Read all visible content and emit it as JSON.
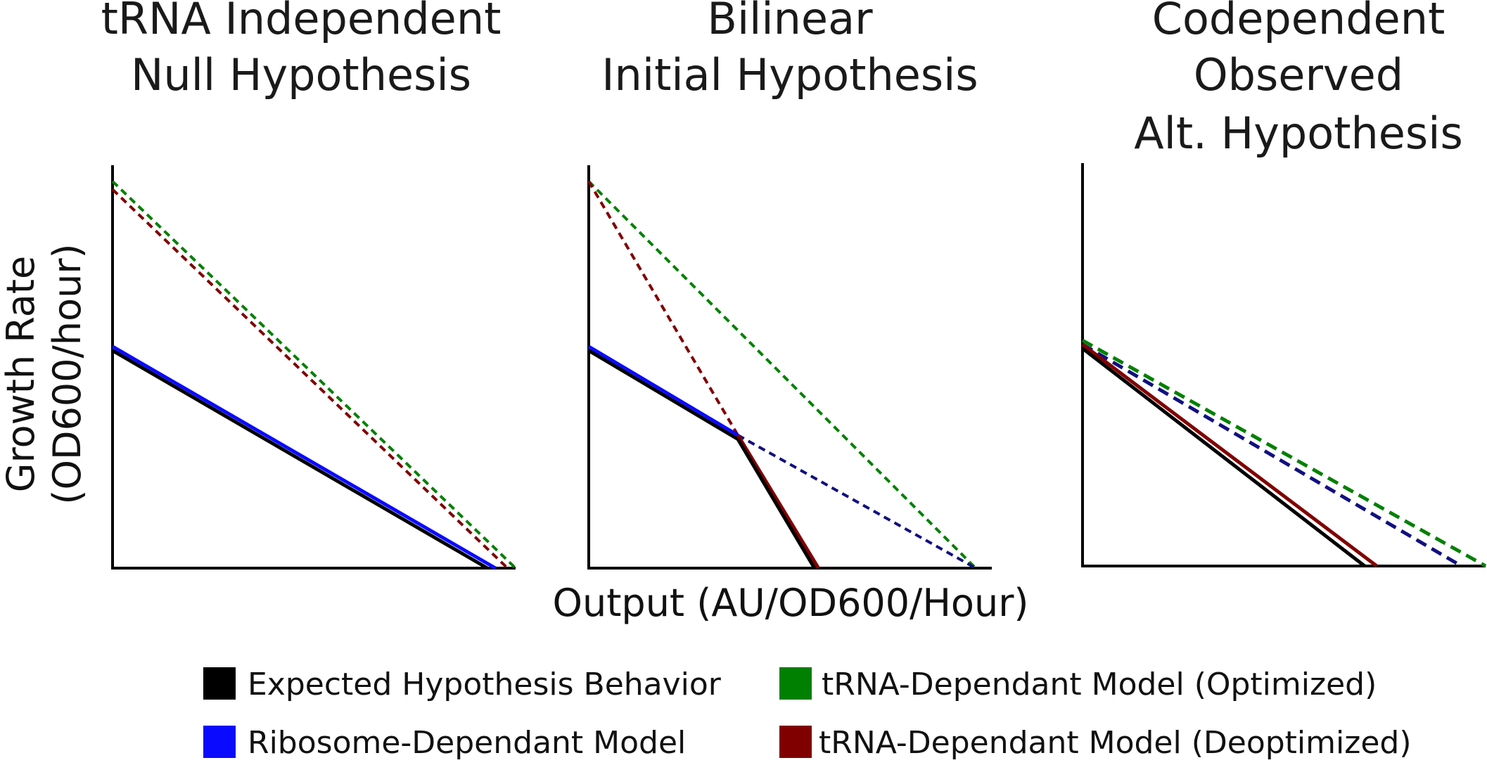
{
  "panels": [
    {
      "title_lines": [
        "tRNA Independent",
        "Null Hypothesis"
      ],
      "lines": [
        {
          "series": "trna_optimized",
          "style": "dashed",
          "from": [
            0,
            0.96
          ],
          "to": [
            1.0,
            0.0
          ]
        },
        {
          "series": "trna_deoptimized",
          "style": "dashed",
          "from": [
            0,
            0.94
          ],
          "to": [
            0.98,
            0.0
          ]
        },
        {
          "series": "ribosome",
          "style": "solid",
          "from": [
            0,
            0.55
          ],
          "to": [
            0.95,
            0.0
          ]
        },
        {
          "series": "expected",
          "style": "solid",
          "from": [
            0,
            0.54
          ],
          "to": [
            0.93,
            0.0
          ]
        }
      ]
    },
    {
      "title_lines": [
        "Bilinear",
        "Initial Hypothesis"
      ],
      "lines": [
        {
          "series": "trna_optimized",
          "style": "dashed",
          "from": [
            0,
            0.96
          ],
          "to": [
            0.96,
            0.0
          ]
        },
        {
          "series": "trna_deoptimized",
          "style": "dashed",
          "from": [
            0,
            0.96
          ],
          "to": [
            0.37,
            0.33
          ]
        },
        {
          "series": "ribosome",
          "style": "dashed",
          "from": [
            0.37,
            0.33
          ],
          "to": [
            0.96,
            0.0
          ]
        },
        {
          "series": "ribosome",
          "style": "solid",
          "from": [
            0,
            0.55
          ],
          "to": [
            0.37,
            0.33
          ]
        },
        {
          "series": "expected",
          "style": "solid",
          "from": [
            0,
            0.54
          ],
          "to": [
            0.37,
            0.32
          ]
        },
        {
          "series": "trna_deoptimized",
          "style": "solid",
          "from": [
            0.37,
            0.33
          ],
          "to": [
            0.57,
            0.0
          ]
        },
        {
          "series": "expected",
          "style": "solid",
          "from": [
            0.37,
            0.32
          ],
          "to": [
            0.56,
            0.0
          ]
        }
      ]
    },
    {
      "title_lines": [
        "Codependent",
        "Observed",
        "Alt. Hypothesis"
      ],
      "lines": [
        {
          "series": "trna_optimized",
          "style": "dashed",
          "from": [
            0,
            0.56
          ],
          "to": [
            1.0,
            0.0
          ]
        },
        {
          "series": "ribosome",
          "style": "dashed",
          "from": [
            0,
            0.55
          ],
          "to": [
            0.94,
            0.0
          ]
        },
        {
          "series": "trna_deoptimized",
          "style": "solid",
          "from": [
            0,
            0.55
          ],
          "to": [
            0.73,
            0.0
          ]
        },
        {
          "series": "expected",
          "style": "solid",
          "from": [
            0,
            0.54
          ],
          "to": [
            0.7,
            0.0
          ]
        }
      ]
    }
  ],
  "y_axis_label_lines": [
    "Growth Rate",
    "(OD600/hour)"
  ],
  "x_axis_label": "Output (AU/OD600/Hour)",
  "legend": [
    {
      "key": "expected",
      "label": "Expected Hypothesis Behavior",
      "color": "#000000"
    },
    {
      "key": "ribosome",
      "label": "Ribosome-Dependant Model",
      "color": "#0a0aff"
    },
    {
      "key": "trna_optimized",
      "label": "tRNA-Dependant Model (Optimized)",
      "color": "#008000"
    },
    {
      "key": "trna_deoptimized",
      "label": "tRNA-Dependant Model (Deoptimized)",
      "color": "#800000"
    }
  ],
  "colors": {
    "expected": "#000000",
    "ribosome": "#0a0aff",
    "ribosome_dashed": "#101080",
    "trna_optimized": "#008000",
    "trna_deoptimized": "#800000"
  }
}
